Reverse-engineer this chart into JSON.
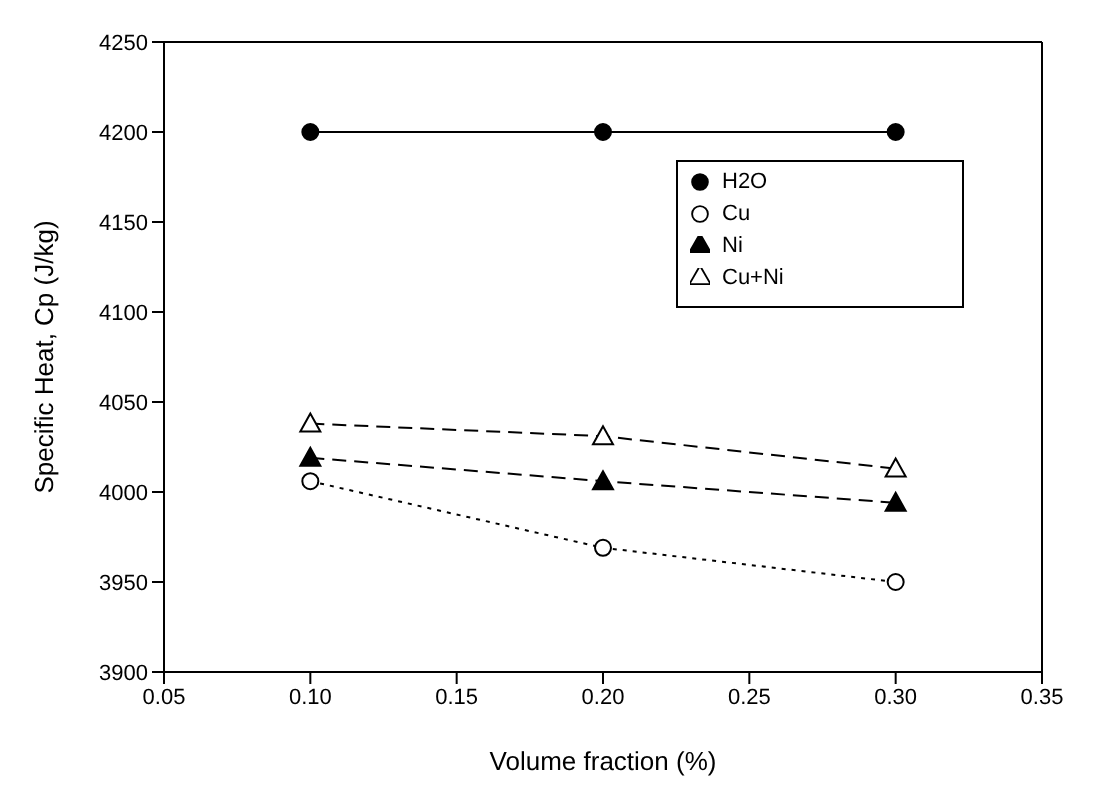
{
  "chart_data": {
    "type": "line",
    "xlabel": "Volume fraction (%)",
    "ylabel": "Specific Heat, Cp (J/kg)",
    "x": [
      0.1,
      0.2,
      0.3
    ],
    "series": [
      {
        "name": "H2O",
        "color": "#000000",
        "values": [
          4200,
          4200,
          4200
        ],
        "marker": "circle",
        "line_style": "solid"
      },
      {
        "name": "Cu",
        "color": "#000000",
        "values": [
          4006,
          3969,
          3950
        ],
        "marker": "circle",
        "line_style": "dotted"
      },
      {
        "name": "Ni",
        "color": "#000000",
        "values": [
          4019,
          4006,
          3994
        ],
        "marker": "triangle",
        "line_style": "dashed"
      },
      {
        "name": "Cu+Ni",
        "color": "#000000",
        "values": [
          4038,
          4031,
          4013
        ],
        "marker": "triangle",
        "line_style": "dashed"
      }
    ],
    "xlim": [
      0.05,
      0.35
    ],
    "xticks": [
      0.05,
      {
        "value": 0.1,
        "label": "0.10"
      },
      0.15,
      {
        "value": 0.2,
        "label": "0.20"
      },
      0.25,
      {
        "value": 0.3,
        "label": "0.30"
      },
      0.35
    ],
    "ylim": [
      3900,
      4250
    ],
    "yticks": [
      3900,
      3950,
      4000,
      4050,
      4100,
      4150,
      4200,
      4250
    ],
    "grid": false,
    "legend": "top right"
  }
}
